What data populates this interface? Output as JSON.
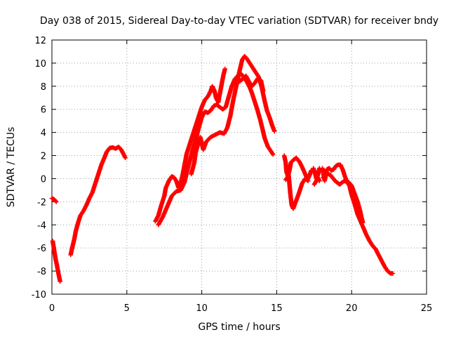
{
  "chart_data": {
    "type": "scatter",
    "title": "Day 038 of 2015, Sidereal Day-to-day VTEC variation (SDTVAR) for receiver bndy",
    "xlabel": "GPS time / hours",
    "ylabel": "SDTVAR / TECUs",
    "xlim": [
      0,
      25
    ],
    "ylim": [
      -10,
      12
    ],
    "xticks": [
      0,
      5,
      10,
      15,
      20,
      25
    ],
    "yticks": [
      -10,
      -8,
      -6,
      -4,
      -2,
      0,
      2,
      4,
      6,
      8,
      10,
      12
    ],
    "xtick_labels": [
      "0",
      "5",
      "10",
      "15",
      "20",
      "25"
    ],
    "ytick_labels": [
      "-10",
      "-8",
      "-6",
      "-4",
      "-2",
      "0",
      "2",
      "4",
      "6",
      "8",
      "10",
      "12"
    ],
    "grid": true,
    "marker": "+",
    "color": "#ff0000",
    "series": [
      {
        "name": "seg-a",
        "points": [
          [
            0.0,
            -1.7
          ],
          [
            0.15,
            -1.8
          ],
          [
            0.3,
            -2.0
          ]
        ]
      },
      {
        "name": "seg-b",
        "points": [
          [
            0.05,
            -5.4
          ],
          [
            0.15,
            -6.2
          ],
          [
            0.25,
            -7.0
          ],
          [
            0.35,
            -7.6
          ],
          [
            0.45,
            -8.3
          ],
          [
            0.55,
            -8.9
          ]
        ]
      },
      {
        "name": "seg-c",
        "points": [
          [
            1.25,
            -6.6
          ],
          [
            1.35,
            -6.0
          ],
          [
            1.5,
            -5.2
          ],
          [
            1.6,
            -4.5
          ],
          [
            1.75,
            -3.8
          ],
          [
            1.9,
            -3.2
          ],
          [
            2.1,
            -2.8
          ],
          [
            2.3,
            -2.3
          ],
          [
            2.5,
            -1.7
          ],
          [
            2.7,
            -1.2
          ],
          [
            2.85,
            -0.6
          ],
          [
            3.0,
            0.0
          ],
          [
            3.15,
            0.6
          ],
          [
            3.3,
            1.2
          ],
          [
            3.5,
            1.8
          ],
          [
            3.65,
            2.3
          ],
          [
            3.85,
            2.65
          ],
          [
            4.05,
            2.7
          ],
          [
            4.25,
            2.6
          ],
          [
            4.45,
            2.75
          ],
          [
            4.6,
            2.55
          ],
          [
            4.75,
            2.2
          ],
          [
            4.9,
            1.8
          ]
        ]
      },
      {
        "name": "seg-d1",
        "points": [
          [
            6.9,
            -3.7
          ],
          [
            7.1,
            -3.2
          ],
          [
            7.3,
            -2.3
          ],
          [
            7.5,
            -1.5
          ],
          [
            7.6,
            -0.8
          ],
          [
            7.8,
            -0.2
          ],
          [
            8.0,
            0.2
          ],
          [
            8.15,
            0.1
          ],
          [
            8.3,
            -0.2
          ],
          [
            8.45,
            -0.8
          ],
          [
            8.55,
            -0.6
          ],
          [
            8.7,
            0.2
          ],
          [
            8.85,
            1.2
          ],
          [
            9.0,
            2.2
          ],
          [
            9.2,
            3.0
          ],
          [
            9.4,
            3.8
          ],
          [
            9.6,
            4.6
          ],
          [
            9.8,
            5.4
          ],
          [
            10.0,
            6.2
          ],
          [
            10.2,
            6.8
          ],
          [
            10.4,
            7.1
          ],
          [
            10.6,
            7.6
          ],
          [
            10.7,
            8.0
          ],
          [
            10.85,
            7.6
          ],
          [
            10.95,
            7.0
          ],
          [
            11.1,
            6.6
          ],
          [
            11.3,
            8.0
          ],
          [
            11.45,
            9.0
          ],
          [
            11.55,
            9.5
          ]
        ]
      },
      {
        "name": "seg-d2",
        "points": [
          [
            7.1,
            -4.0
          ],
          [
            7.4,
            -3.3
          ],
          [
            7.7,
            -2.4
          ],
          [
            8.0,
            -1.5
          ],
          [
            8.3,
            -1.1
          ],
          [
            8.6,
            -1.0
          ],
          [
            8.85,
            -0.3
          ],
          [
            9.05,
            0.8
          ],
          [
            9.25,
            1.8
          ],
          [
            9.45,
            2.8
          ],
          [
            9.65,
            3.6
          ],
          [
            9.8,
            4.4
          ],
          [
            10.0,
            5.3
          ],
          [
            10.2,
            5.8
          ],
          [
            10.4,
            5.7
          ],
          [
            10.6,
            5.9
          ],
          [
            10.8,
            6.3
          ],
          [
            11.0,
            6.4
          ],
          [
            11.2,
            6.2
          ],
          [
            11.4,
            6.0
          ],
          [
            11.6,
            6.2
          ],
          [
            11.8,
            7.1
          ],
          [
            12.0,
            8.0
          ],
          [
            12.2,
            8.6
          ],
          [
            12.4,
            8.9
          ],
          [
            12.6,
            9.1
          ],
          [
            12.8,
            8.8
          ],
          [
            13.0,
            8.4
          ],
          [
            13.2,
            7.9
          ],
          [
            13.35,
            7.4
          ],
          [
            13.5,
            6.8
          ],
          [
            13.7,
            6.0
          ],
          [
            13.9,
            5.1
          ],
          [
            14.05,
            4.3
          ],
          [
            14.2,
            3.5
          ],
          [
            14.4,
            2.8
          ],
          [
            14.6,
            2.4
          ],
          [
            14.75,
            2.1
          ]
        ]
      },
      {
        "name": "seg-d3",
        "points": [
          [
            9.3,
            0.4
          ],
          [
            9.5,
            1.4
          ],
          [
            9.6,
            2.3
          ],
          [
            9.75,
            3.0
          ],
          [
            9.9,
            3.6
          ],
          [
            10.1,
            2.5
          ],
          [
            10.3,
            3.2
          ],
          [
            10.6,
            3.6
          ],
          [
            10.9,
            3.8
          ],
          [
            11.2,
            4.0
          ],
          [
            11.5,
            3.9
          ],
          [
            11.7,
            4.4
          ],
          [
            11.9,
            5.4
          ],
          [
            12.1,
            6.8
          ],
          [
            12.3,
            8.0
          ],
          [
            12.5,
            9.2
          ],
          [
            12.7,
            10.3
          ],
          [
            12.85,
            10.6
          ],
          [
            13.0,
            10.4
          ],
          [
            13.2,
            10.0
          ],
          [
            13.4,
            9.6
          ],
          [
            13.6,
            9.2
          ],
          [
            13.8,
            8.8
          ],
          [
            14.0,
            7.9
          ],
          [
            14.2,
            6.7
          ],
          [
            14.35,
            5.9
          ],
          [
            14.55,
            5.2
          ],
          [
            14.7,
            4.6
          ],
          [
            14.85,
            4.1
          ]
        ]
      },
      {
        "name": "seg-d4",
        "points": [
          [
            12.4,
            8.3
          ],
          [
            12.7,
            8.6
          ],
          [
            12.95,
            8.9
          ],
          [
            13.15,
            8.4
          ],
          [
            13.35,
            8.0
          ],
          [
            13.55,
            8.3
          ],
          [
            13.75,
            8.7
          ],
          [
            13.95,
            8.5
          ],
          [
            14.1,
            7.6
          ]
        ]
      },
      {
        "name": "seg-e1",
        "points": [
          [
            15.5,
            2.0
          ],
          [
            15.6,
            1.4
          ],
          [
            15.65,
            0.6
          ],
          [
            15.75,
            0.2
          ],
          [
            15.85,
            0.7
          ],
          [
            15.95,
            1.4
          ],
          [
            16.1,
            1.6
          ],
          [
            16.3,
            1.8
          ],
          [
            16.5,
            1.5
          ],
          [
            16.7,
            1.0
          ],
          [
            16.9,
            0.4
          ],
          [
            17.05,
            -0.1
          ],
          [
            17.2,
            0.3
          ],
          [
            17.3,
            0.7
          ]
        ]
      },
      {
        "name": "seg-e2",
        "points": [
          [
            15.6,
            -0.1
          ],
          [
            15.8,
            0.3
          ],
          [
            15.9,
            -1.2
          ],
          [
            16.0,
            -2.3
          ],
          [
            16.1,
            -2.6
          ],
          [
            16.3,
            -1.9
          ],
          [
            16.5,
            -1.2
          ],
          [
            16.7,
            -0.4
          ],
          [
            16.9,
            0.0
          ],
          [
            17.1,
            -0.2
          ]
        ]
      },
      {
        "name": "seg-f1",
        "points": [
          [
            17.45,
            0.9
          ],
          [
            17.55,
            0.5
          ],
          [
            17.65,
            0.0
          ],
          [
            17.75,
            0.3
          ],
          [
            17.85,
            0.9
          ]
        ]
      },
      {
        "name": "seg-f2",
        "points": [
          [
            17.5,
            -0.5
          ],
          [
            17.6,
            -0.3
          ],
          [
            17.75,
            0.1
          ],
          [
            17.85,
            -0.2
          ]
        ]
      },
      {
        "name": "seg-g",
        "points": [
          [
            18.05,
            0.9
          ],
          [
            18.2,
            -0.2
          ],
          [
            18.35,
            0.8
          ],
          [
            18.5,
            0.9
          ],
          [
            18.65,
            0.7
          ],
          [
            18.8,
            0.8
          ],
          [
            18.95,
            1.1
          ],
          [
            19.1,
            1.2
          ],
          [
            19.25,
            1.2
          ],
          [
            19.4,
            0.8
          ],
          [
            19.55,
            0.2
          ],
          [
            19.7,
            -0.3
          ],
          [
            19.85,
            -0.6
          ],
          [
            20.0,
            -1.4
          ],
          [
            20.2,
            -2.2
          ],
          [
            20.4,
            -3.1
          ],
          [
            20.6,
            -3.7
          ],
          [
            20.8,
            -4.3
          ],
          [
            21.0,
            -4.9
          ],
          [
            21.2,
            -5.4
          ],
          [
            21.4,
            -5.8
          ],
          [
            21.6,
            -6.1
          ],
          [
            21.8,
            -6.6
          ],
          [
            22.0,
            -7.1
          ],
          [
            22.2,
            -7.6
          ],
          [
            22.4,
            -8.0
          ],
          [
            22.6,
            -8.2
          ],
          [
            22.75,
            -8.2
          ]
        ]
      },
      {
        "name": "seg-h",
        "points": [
          [
            18.1,
            0.1
          ],
          [
            18.3,
            0.5
          ],
          [
            18.6,
            0.3
          ],
          [
            18.9,
            -0.2
          ],
          [
            19.2,
            -0.5
          ],
          [
            19.5,
            -0.2
          ],
          [
            19.8,
            -0.3
          ],
          [
            20.0,
            -0.6
          ],
          [
            20.2,
            -1.3
          ],
          [
            20.4,
            -2.0
          ],
          [
            20.55,
            -2.7
          ],
          [
            20.65,
            -3.3
          ],
          [
            20.75,
            -3.8
          ]
        ]
      }
    ]
  }
}
